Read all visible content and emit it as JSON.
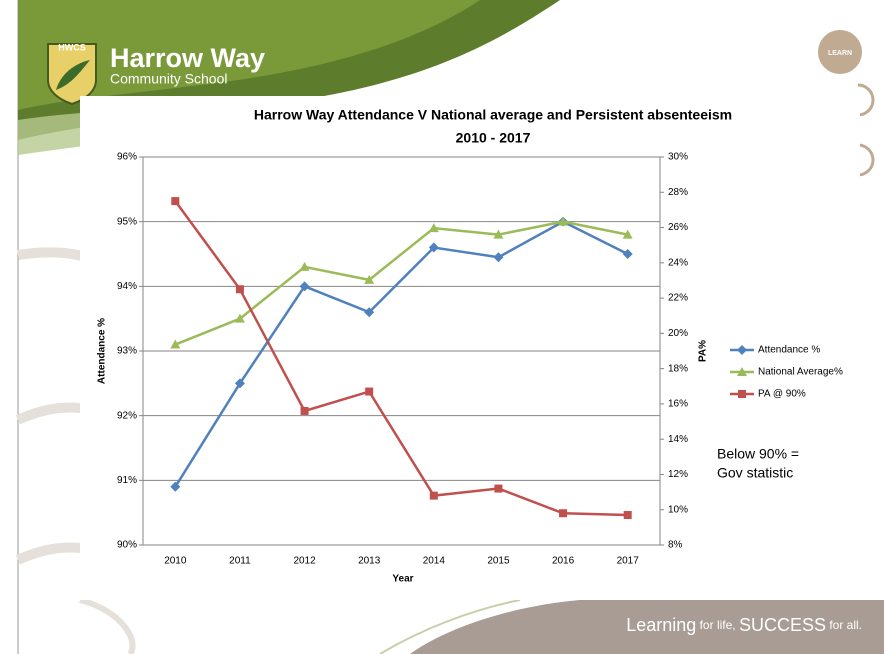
{
  "slide": {
    "logo_badge": "HWCS",
    "school_name": "Harrow Way",
    "school_subtitle": "Community School",
    "badge": "LEARN",
    "footer": [
      "Learning",
      " for life, ",
      "SUCCESS",
      " for all."
    ]
  },
  "chart_data": {
    "type": "line",
    "title": "Harrow Way Attendance V National average and Persistent absenteeism",
    "subtitle": "2010 - 2017",
    "x_label": "Year",
    "y_label": "Attendance %",
    "y2_label": "PA%",
    "categories": [
      "2010",
      "2011",
      "2012",
      "2013",
      "2014",
      "2015",
      "2016",
      "2017"
    ],
    "series": [
      {
        "name": "Attendance %",
        "color": "#4f81bd",
        "marker": "diamond",
        "values": [
          90.9,
          92.5,
          94.0,
          93.6,
          94.6,
          94.45,
          95.0,
          94.5
        ]
      },
      {
        "name": "National Average%",
        "color": "#9bbb59",
        "marker": "triangle",
        "values": [
          93.1,
          93.5,
          94.3,
          94.1,
          94.9,
          94.8,
          95.0,
          94.8
        ]
      },
      {
        "name": "PA @ 90%",
        "color": "#c0504d",
        "marker": "square",
        "axis": "y2",
        "values": [
          27.5,
          22.5,
          15.6,
          16.7,
          10.8,
          11.2,
          9.8,
          9.7
        ]
      }
    ],
    "ylim": [
      90,
      96
    ],
    "yticks": [
      {
        "value": 90,
        "label": "90%"
      },
      {
        "value": 91,
        "label": "91%"
      },
      {
        "value": 92,
        "label": "92%"
      },
      {
        "value": 93,
        "label": "93%"
      },
      {
        "value": 94,
        "label": "94%"
      },
      {
        "value": 95,
        "label": "95%"
      },
      {
        "value": 96,
        "label": "96%"
      }
    ],
    "y2lim": [
      8,
      30
    ],
    "y2ticks": [
      {
        "value": 8,
        "label": "8%"
      },
      {
        "value": 10,
        "label": "10%"
      },
      {
        "value": 12,
        "label": "12%"
      },
      {
        "value": 14,
        "label": "14%"
      },
      {
        "value": 16,
        "label": "16%"
      },
      {
        "value": 18,
        "label": "18%"
      },
      {
        "value": 20,
        "label": "20%"
      },
      {
        "value": 22,
        "label": "22%"
      },
      {
        "value": 24,
        "label": "24%"
      },
      {
        "value": 26,
        "label": "26%"
      },
      {
        "value": 28,
        "label": "28%"
      },
      {
        "value": 30,
        "label": "30%"
      }
    ],
    "grid": true,
    "legend": "right",
    "annotation": [
      "Below 90% =",
      "Gov statistic"
    ]
  }
}
